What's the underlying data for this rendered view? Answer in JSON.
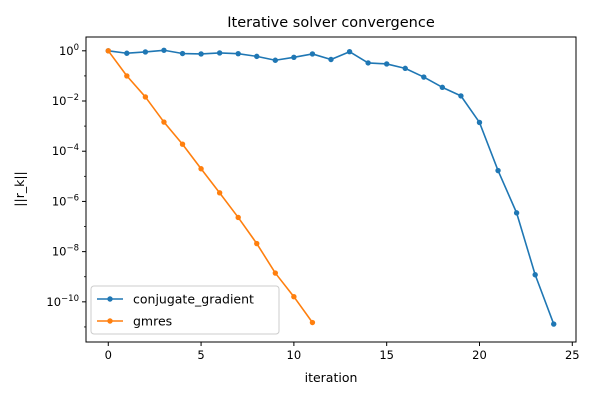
{
  "chart_data": {
    "type": "line",
    "title": "Iterative solver convergence",
    "xlabel": "iteration",
    "ylabel": "||r_k||",
    "xlim": [
      -1.2,
      25.2
    ],
    "ylim_log10": [
      -11.6,
      0.55
    ],
    "yscale": "log",
    "grid": false,
    "legend_position": "lower-left",
    "x_ticks": [
      0,
      5,
      10,
      15,
      20,
      25
    ],
    "x_tick_labels": [
      "0",
      "5",
      "10",
      "15",
      "20",
      "25"
    ],
    "y_tick_exponents": [
      0,
      -2,
      -4,
      -6,
      -8,
      -10
    ],
    "y_tick_labels": [
      {
        "base": "10",
        "exp": "0"
      },
      {
        "base": "10",
        "exp": "−2"
      },
      {
        "base": "10",
        "exp": "−4"
      },
      {
        "base": "10",
        "exp": "−6"
      },
      {
        "base": "10",
        "exp": "−8"
      },
      {
        "base": "10",
        "exp": "−10"
      }
    ],
    "series": [
      {
        "name": "conjugate_gradient",
        "color": "#1f77b4",
        "x": [
          0,
          1,
          2,
          3,
          4,
          5,
          6,
          7,
          8,
          9,
          10,
          11,
          12,
          13,
          14,
          15,
          16,
          17,
          18,
          19,
          20,
          21,
          22,
          23,
          24
        ],
        "y": [
          1.0,
          0.8,
          0.9,
          1.05,
          0.78,
          0.75,
          0.82,
          0.77,
          0.6,
          0.42,
          0.55,
          0.75,
          0.45,
          0.92,
          0.33,
          0.3,
          0.2,
          0.09,
          0.035,
          0.016,
          0.0014,
          1.7e-05,
          3.5e-07,
          1.2e-09,
          1.3e-11
        ]
      },
      {
        "name": "gmres",
        "color": "#ff7f0e",
        "x": [
          0,
          1,
          2,
          3,
          4,
          5,
          6,
          7,
          8,
          9,
          10,
          11
        ],
        "y": [
          1.0,
          0.1,
          0.0145,
          0.00145,
          0.00019,
          2e-05,
          2.2e-06,
          2.3e-07,
          2.1e-08,
          1.4e-09,
          1.6e-10,
          1.5e-11
        ]
      }
    ]
  }
}
